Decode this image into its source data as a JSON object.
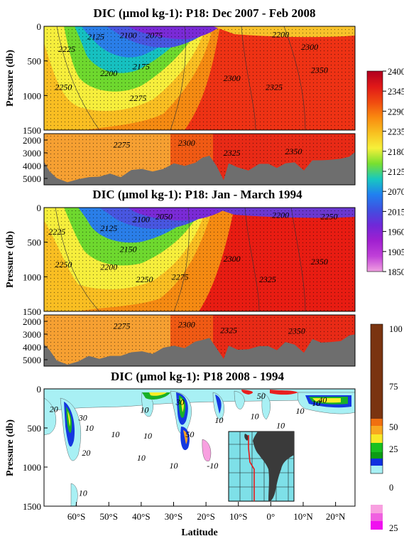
{
  "chart_data": [
    {
      "type": "heatmap",
      "title": "DIC (µmol kg-1): P18:  Dec 2007 - Feb 2008",
      "ylabel": "Pressure (db)",
      "upper_yticks": [
        "0",
        "500",
        "1000",
        "1500"
      ],
      "lower_yticks": [
        "2000",
        "3000",
        "4000",
        "5000"
      ],
      "ylim_upper": [
        1500,
        0
      ],
      "ylim_lower": [
        5500,
        1500
      ],
      "xlim": [
        -70,
        26
      ],
      "contour_labels": [
        {
          "text": "2125",
          "lat": -54,
          "p": 150
        },
        {
          "text": "2100",
          "lat": -44,
          "p": 130
        },
        {
          "text": "2075",
          "lat": -36,
          "p": 130
        },
        {
          "text": "2200",
          "lat": 3,
          "p": 120
        },
        {
          "text": "2225",
          "lat": -63,
          "p": 330
        },
        {
          "text": "2300",
          "lat": 12,
          "p": 300
        },
        {
          "text": "2250",
          "lat": -64,
          "p": 880
        },
        {
          "text": "2200",
          "lat": -50,
          "p": 680
        },
        {
          "text": "2175",
          "lat": -40,
          "p": 580
        },
        {
          "text": "2300",
          "lat": -12,
          "p": 750
        },
        {
          "text": "2350",
          "lat": 15,
          "p": 630
        },
        {
          "text": "2325",
          "lat": 1,
          "p": 880
        },
        {
          "text": "2275",
          "lat": -41,
          "p": 1040
        }
      ],
      "lower_contour_labels": [
        {
          "text": "2275",
          "lat": -46,
          "p": 2350
        },
        {
          "text": "2300",
          "lat": -26,
          "p": 2220
        },
        {
          "text": "2325",
          "lat": -12,
          "p": 3000
        },
        {
          "text": "2350",
          "lat": 7,
          "p": 2900
        }
      ]
    },
    {
      "type": "heatmap",
      "title": "DIC (µmol kg-1): P18:  Jan - March 1994",
      "ylabel": "Pressure (db)",
      "upper_yticks": [
        "0",
        "500",
        "1000",
        "1500"
      ],
      "lower_yticks": [
        "2000",
        "3000",
        "4000",
        "5000"
      ],
      "ylim_upper": [
        1500,
        0
      ],
      "ylim_lower": [
        5500,
        1500
      ],
      "xlim": [
        -70,
        26
      ],
      "contour_labels": [
        {
          "text": "2100",
          "lat": -40,
          "p": 170
        },
        {
          "text": "2050",
          "lat": -33,
          "p": 130
        },
        {
          "text": "2200",
          "lat": 3,
          "p": 110
        },
        {
          "text": "2250",
          "lat": 18,
          "p": 130
        },
        {
          "text": "2225",
          "lat": -66,
          "p": 350
        },
        {
          "text": "2125",
          "lat": -50,
          "p": 300
        },
        {
          "text": "2150",
          "lat": -44,
          "p": 600
        },
        {
          "text": "2200",
          "lat": -50,
          "p": 860
        },
        {
          "text": "2250",
          "lat": -64,
          "p": 820
        },
        {
          "text": "2250",
          "lat": -39,
          "p": 1040
        },
        {
          "text": "2275",
          "lat": -28,
          "p": 1000
        },
        {
          "text": "2300",
          "lat": -12,
          "p": 740
        },
        {
          "text": "2350",
          "lat": 15,
          "p": 780
        },
        {
          "text": "2325",
          "lat": -1,
          "p": 1040
        }
      ],
      "lower_contour_labels": [
        {
          "text": "2275",
          "lat": -46,
          "p": 2350
        },
        {
          "text": "2300",
          "lat": -26,
          "p": 2250
        },
        {
          "text": "2325",
          "lat": -13,
          "p": 2700
        },
        {
          "text": "2350",
          "lat": 8,
          "p": 2750
        }
      ]
    },
    {
      "type": "heatmap",
      "title": "DIC (µmol kg-1): P18 2008 - 1994",
      "xlabel": "Latitude",
      "ylabel": "Pressure (db)",
      "xticks": [
        "60°S",
        "50°S",
        "40°S",
        "30°S",
        "20°S",
        "10°S",
        "0°",
        "10°N",
        "20°N"
      ],
      "xtick_values": [
        -60,
        -50,
        -40,
        -30,
        -20,
        -10,
        0,
        10,
        20
      ],
      "yticks": [
        "0",
        "500",
        "1000",
        "1500"
      ],
      "ylim": [
        1500,
        0
      ],
      "xlim": [
        -70,
        26
      ],
      "contour_labels": [
        {
          "text": "20",
          "lat": -67,
          "p": 260
        },
        {
          "text": "30",
          "lat": -58,
          "p": 370
        },
        {
          "text": "10",
          "lat": -56,
          "p": 500
        },
        {
          "text": "20",
          "lat": -57,
          "p": 820
        },
        {
          "text": "10",
          "lat": -48,
          "p": 580
        },
        {
          "text": "10",
          "lat": -39,
          "p": 270
        },
        {
          "text": "10",
          "lat": -38,
          "p": 600
        },
        {
          "text": "10",
          "lat": -40,
          "p": 880
        },
        {
          "text": "30",
          "lat": -28,
          "p": 170
        },
        {
          "text": "50",
          "lat": -25,
          "p": 580
        },
        {
          "text": "10",
          "lat": -30,
          "p": 980
        },
        {
          "text": "-10",
          "lat": -18,
          "p": 980
        },
        {
          "text": "10",
          "lat": -16,
          "p": 400
        },
        {
          "text": "10",
          "lat": -58,
          "p": 1330
        },
        {
          "text": "10",
          "lat": -5,
          "p": 350
        },
        {
          "text": "10",
          "lat": 3,
          "p": 470
        },
        {
          "text": "50",
          "lat": -3,
          "p": 90
        },
        {
          "text": "10",
          "lat": 9,
          "p": 280
        },
        {
          "text": "40",
          "lat": 16,
          "p": 140
        },
        {
          "text": "10",
          "lat": 14,
          "p": 180
        }
      ]
    }
  ],
  "colorbar_abs": {
    "ticks": [
      "2400",
      "2345",
      "2290",
      "2235",
      "2180",
      "2125",
      "2070",
      "2015",
      "1960",
      "1905",
      "1850"
    ],
    "stops": [
      "#b00020",
      "#e01818",
      "#f04a10",
      "#f98a10",
      "#f8c020",
      "#f6f03a",
      "#78e030",
      "#18c8c0",
      "#2080f0",
      "#4050e0",
      "#7028d8",
      "#a020d0",
      "#c040d8",
      "#f0a0e0"
    ]
  },
  "colorbar_diff": {
    "ticks": [
      "100",
      "75",
      "50",
      "25",
      "0",
      "25"
    ],
    "zero_label": "0"
  },
  "inset_map": {
    "description_hidden": true
  }
}
